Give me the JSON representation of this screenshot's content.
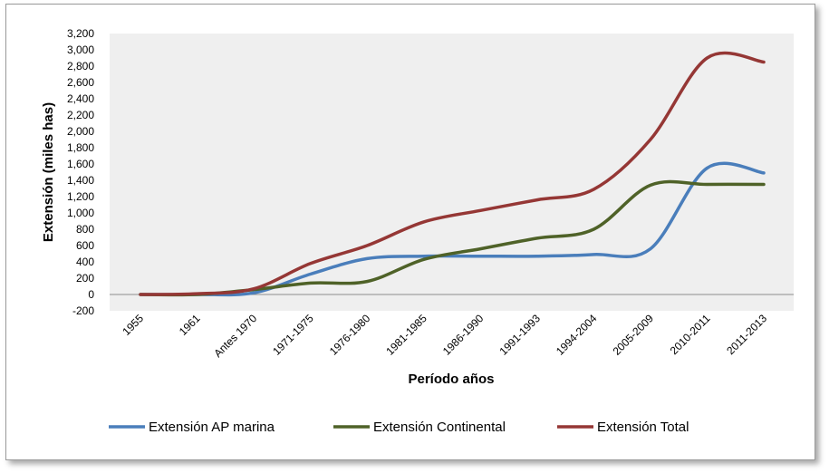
{
  "chart_data": {
    "type": "line",
    "title": "",
    "xlabel": "Período años",
    "ylabel": "Extensión (miles has)",
    "ylim": [
      -200,
      3200
    ],
    "ytick_step": 200,
    "ytick_labels": [
      "-200",
      "0",
      "200",
      "400",
      "600",
      "800",
      "1,000",
      "1,200",
      "1,400",
      "1,600",
      "1,800",
      "2,000",
      "2,200",
      "2,400",
      "2,600",
      "2,800",
      "3,000",
      "3,200"
    ],
    "categories": [
      "1955",
      "1961",
      "Antes 1970",
      "1971-1975",
      "1976-1980",
      "1981-1985",
      "1986-1990",
      "1991-1993",
      "1994-2004",
      "2005-2009",
      "2010-2011",
      "2011-2013"
    ],
    "series": [
      {
        "name": "Extensión AP marina",
        "color": "#4a7ebb",
        "values": [
          0,
          0,
          20,
          250,
          440,
          470,
          470,
          470,
          490,
          560,
          1550,
          1490
        ]
      },
      {
        "name": "Extensión Continental",
        "color": "#4f6228",
        "values": [
          0,
          0,
          60,
          140,
          160,
          430,
          560,
          690,
          800,
          1340,
          1350,
          1350
        ]
      },
      {
        "name": "Extensión Total",
        "color": "#953735",
        "values": [
          0,
          10,
          70,
          380,
          600,
          890,
          1030,
          1160,
          1290,
          1900,
          2900,
          2850
        ]
      }
    ],
    "legend_position": "bottom",
    "grid": false
  }
}
